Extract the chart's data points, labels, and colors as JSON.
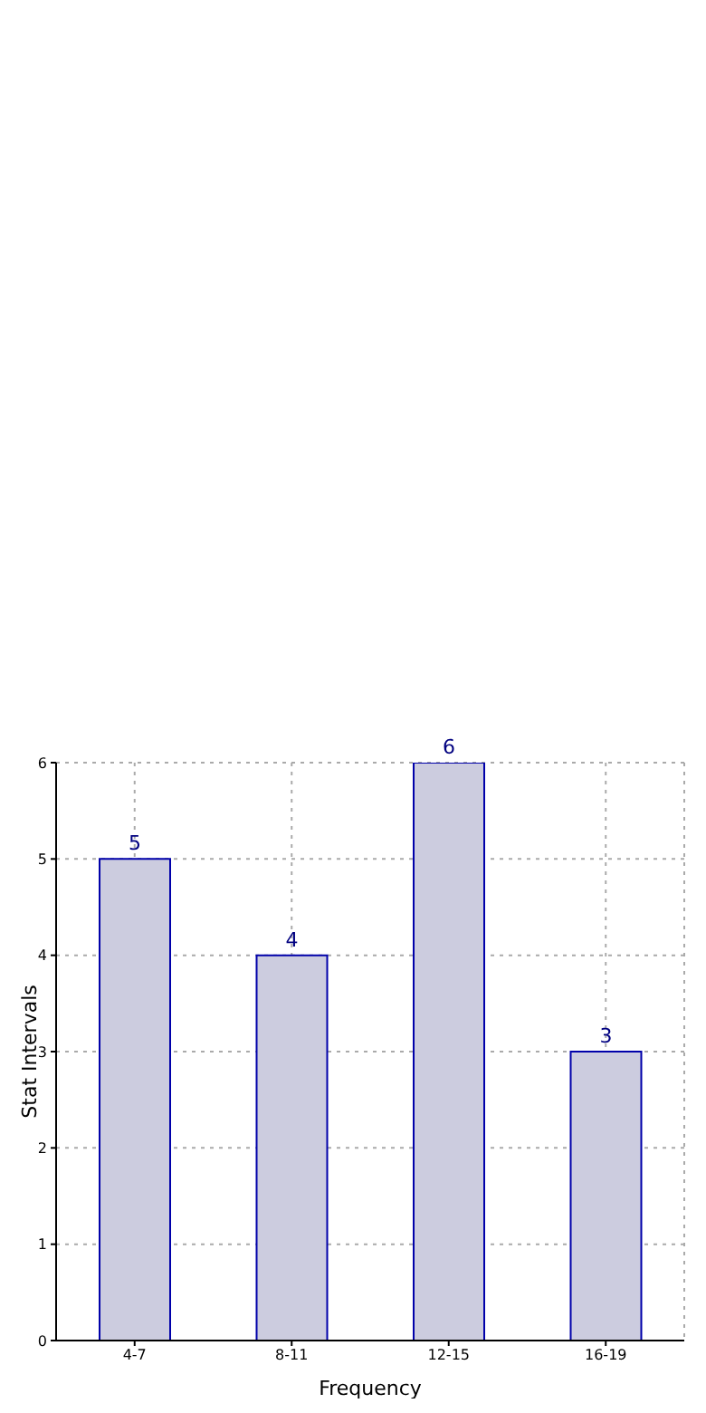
{
  "chart_data": {
    "type": "bar",
    "xlabel": "Frequency",
    "ylabel": "Stat Intervals",
    "categories": [
      "4-7",
      "8-11",
      "12-15",
      "16-19"
    ],
    "values": [
      5,
      4,
      6,
      3
    ],
    "color": "#ccccdf",
    "ylim": [
      0,
      6
    ],
    "yticks": [
      0,
      1,
      2,
      3,
      4,
      5,
      6
    ],
    "grid": true,
    "data_labels": true
  }
}
